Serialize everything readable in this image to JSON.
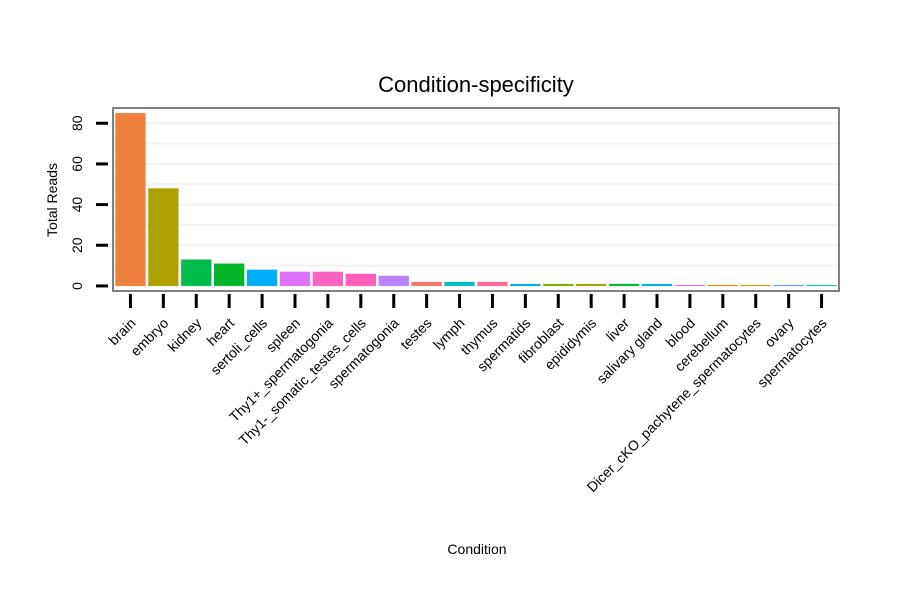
{
  "chart_data": {
    "type": "bar",
    "title": "Condition-specificity",
    "xlabel": "Condition",
    "ylabel": "Total Reads",
    "ylim": [
      -2,
      87
    ],
    "yticks": [
      0,
      20,
      40,
      60,
      80
    ],
    "grid": true,
    "legend": "none",
    "categories": [
      "brain",
      "embryo",
      "kidney",
      "heart",
      "sertoli_cells",
      "spleen",
      "Thy1+_spermatogonia",
      "Thy1-_somatic_testes_cells",
      "spermatogonia",
      "testes",
      "lymph",
      "thymus",
      "spermatids",
      "fibroblast",
      "epididymis",
      "liver",
      "salivary gland",
      "blood",
      "cerebellum",
      "Dicer_cKO_pachytene_spermatocytes",
      "ovary",
      "spermatocytes"
    ],
    "values": [
      85,
      48,
      13,
      11,
      8,
      7,
      7,
      6,
      5,
      2,
      2,
      2,
      1,
      1,
      1,
      1,
      1,
      0.5,
      0.5,
      0.5,
      0.5,
      0.5
    ],
    "colors": [
      "#EE7F3C",
      "#AEA200",
      "#00BC4C",
      "#00B528",
      "#00ADFA",
      "#DC71FA",
      "#FF61C3",
      "#FF5FB8",
      "#B983FF",
      "#F8766D",
      "#00BFC4",
      "#FF6C91",
      "#00A9FF",
      "#7CAE00",
      "#A3A500",
      "#00BA38",
      "#00B0F6",
      "#E76BF3",
      "#D89000",
      "#C99800",
      "#619CFF",
      "#00C0AF"
    ]
  }
}
